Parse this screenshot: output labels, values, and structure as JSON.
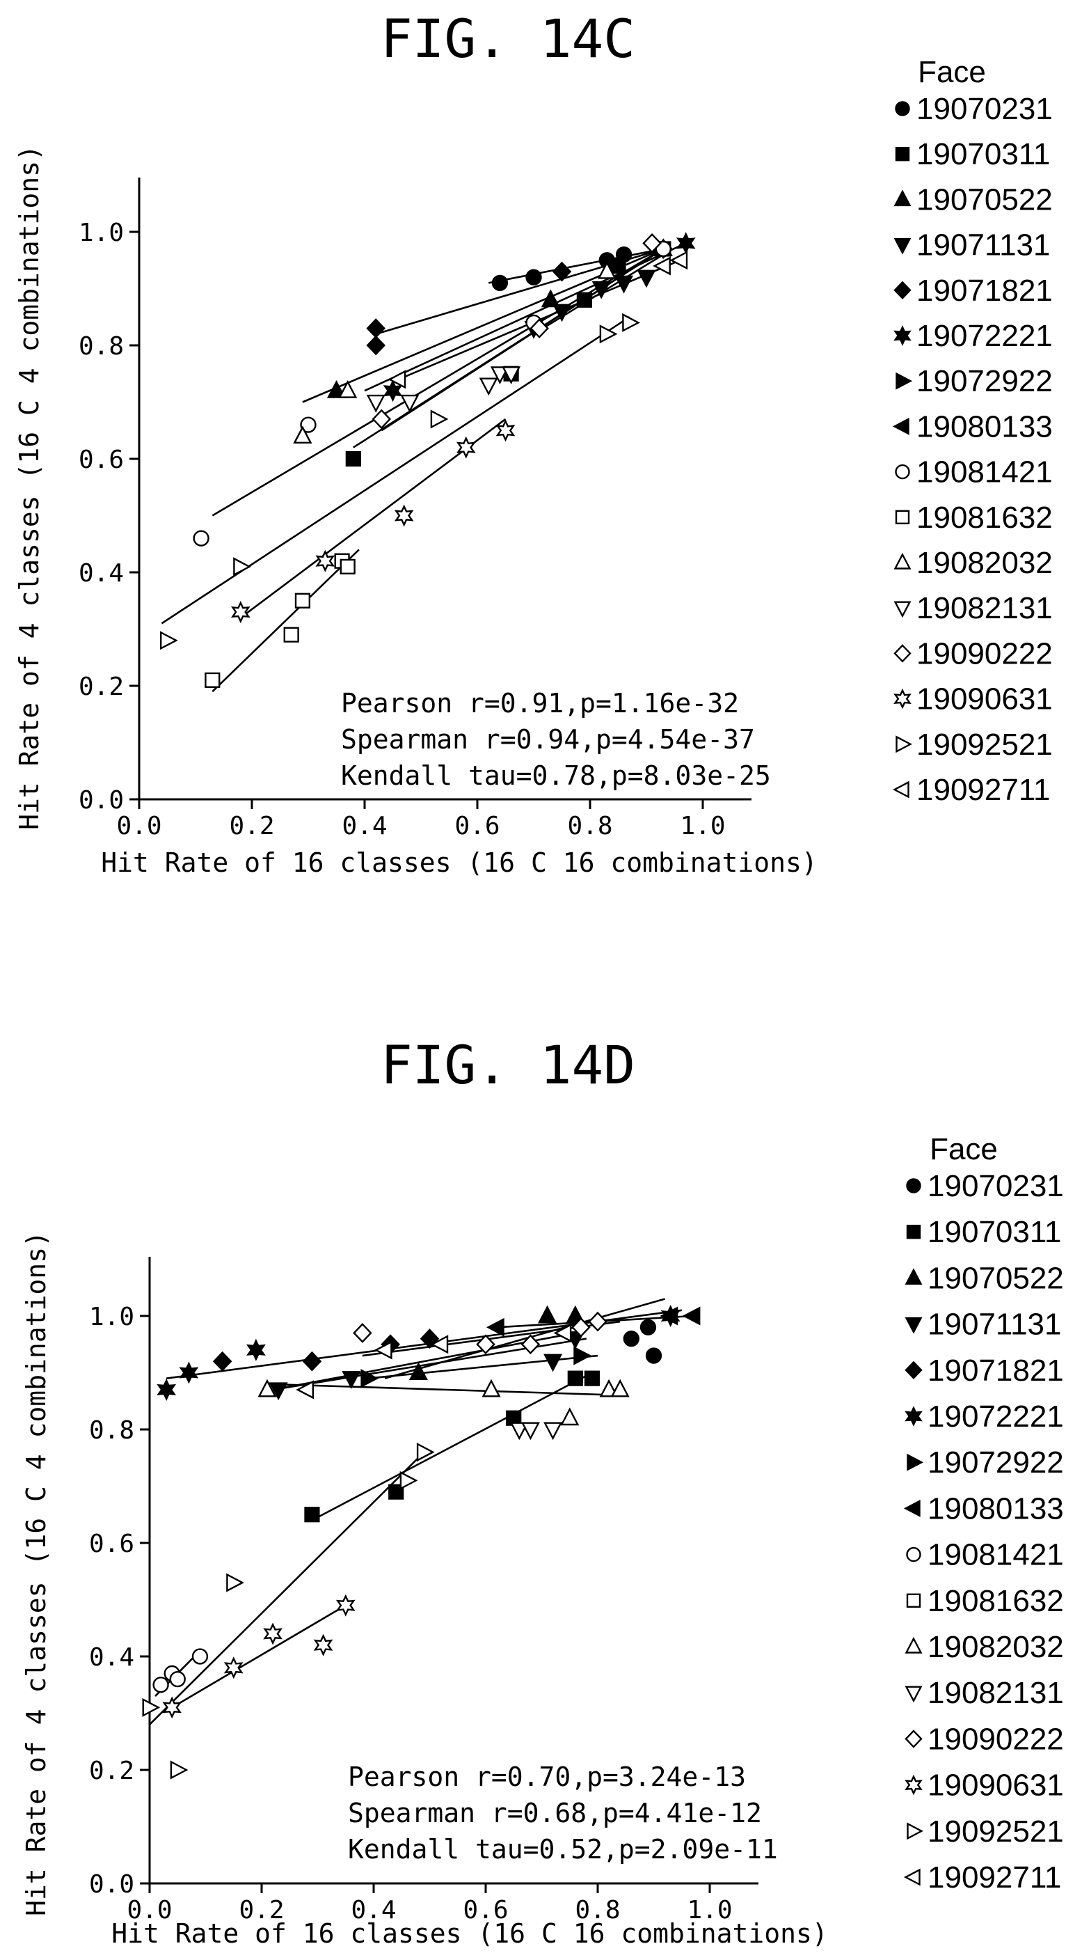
{
  "chart_data": [
    {
      "type": "scatter",
      "title": "FIG. 14C",
      "xlabel": "Hit Rate of 16 classes (16 C 16 combinations)",
      "ylabel": "Hit Rate of 4 classes (16 C 4 combinations)",
      "xlim": [
        0.0,
        1.1
      ],
      "ylim": [
        0.0,
        1.1
      ],
      "xticks": [
        "0.0",
        "0.2",
        "0.4",
        "0.6",
        "0.8",
        "1.0"
      ],
      "yticks": [
        "0.0",
        "0.2",
        "0.4",
        "0.6",
        "0.8",
        "1.0"
      ],
      "legend_title": "Face",
      "legend_position": "right",
      "stats": [
        "Pearson r=0.91,p=1.16e-32",
        "Spearman r=0.94,p=4.54e-37",
        "Kendall tau=0.78,p=8.03e-25"
      ],
      "series": [
        {
          "name": "19070231",
          "marker": "circle",
          "points": [
            [
              0.64,
              0.91
            ],
            [
              0.7,
              0.92
            ],
            [
              0.83,
              0.95
            ],
            [
              0.86,
              0.96
            ],
            [
              0.93,
              0.97
            ]
          ],
          "fit": [
            [
              0.62,
              0.91
            ],
            [
              0.93,
              0.97
            ]
          ]
        },
        {
          "name": "19070311",
          "marker": "square",
          "points": [
            [
              0.38,
              0.6
            ],
            [
              0.66,
              0.75
            ],
            [
              0.79,
              0.88
            ],
            [
              0.85,
              0.94
            ],
            [
              0.93,
              0.97
            ]
          ],
          "fit": [
            [
              0.38,
              0.62
            ],
            [
              0.93,
              0.97
            ]
          ]
        },
        {
          "name": "19070522",
          "marker": "triangle-up",
          "points": [
            [
              0.29,
              0.64
            ],
            [
              0.35,
              0.72
            ],
            [
              0.73,
              0.88
            ],
            [
              0.93,
              0.97
            ]
          ],
          "fit": [
            [
              0.29,
              0.7
            ],
            [
              0.93,
              0.97
            ]
          ]
        },
        {
          "name": "19071131",
          "marker": "triangle-down",
          "points": [
            [
              0.7,
              0.83
            ],
            [
              0.75,
              0.86
            ],
            [
              0.82,
              0.9
            ],
            [
              0.86,
              0.91
            ],
            [
              0.9,
              0.92
            ]
          ],
          "fit": [
            [
              0.7,
              0.82
            ],
            [
              0.93,
              0.96
            ]
          ]
        },
        {
          "name": "19071821",
          "marker": "diamond",
          "points": [
            [
              0.42,
              0.83
            ],
            [
              0.42,
              0.8
            ],
            [
              0.75,
              0.93
            ],
            [
              0.93,
              0.97
            ]
          ],
          "fit": [
            [
              0.42,
              0.82
            ],
            [
              0.93,
              0.97
            ]
          ]
        },
        {
          "name": "19072221",
          "marker": "star6",
          "points": [
            [
              0.45,
              0.72
            ],
            [
              0.97,
              0.98
            ]
          ],
          "fit": [
            [
              0.4,
              0.72
            ],
            [
              0.97,
              0.98
            ]
          ]
        },
        {
          "name": "19072922",
          "marker": "triangle-right",
          "points": [],
          "fit": []
        },
        {
          "name": "19080133",
          "marker": "triangle-left",
          "points": [],
          "fit": []
        },
        {
          "name": "19081421",
          "marker": "circle-open",
          "points": [
            [
              0.11,
              0.46
            ],
            [
              0.3,
              0.66
            ],
            [
              0.7,
              0.84
            ],
            [
              0.93,
              0.97
            ]
          ],
          "fit": [
            [
              0.13,
              0.5
            ],
            [
              0.93,
              0.97
            ]
          ]
        },
        {
          "name": "19081632",
          "marker": "square-open",
          "points": [
            [
              0.13,
              0.21
            ],
            [
              0.27,
              0.29
            ],
            [
              0.29,
              0.35
            ],
            [
              0.36,
              0.42
            ],
            [
              0.37,
              0.41
            ]
          ],
          "fit": [
            [
              0.13,
              0.19
            ],
            [
              0.39,
              0.44
            ]
          ]
        },
        {
          "name": "19082032",
          "marker": "triangle-up-open",
          "points": [
            [
              0.29,
              0.64
            ],
            [
              0.37,
              0.72
            ],
            [
              0.83,
              0.93
            ]
          ],
          "fit": []
        },
        {
          "name": "19082131",
          "marker": "triangle-down-open",
          "points": [
            [
              0.42,
              0.7
            ],
            [
              0.48,
              0.7
            ],
            [
              0.62,
              0.73
            ],
            [
              0.64,
              0.75
            ],
            [
              0.66,
              0.75
            ]
          ],
          "fit": []
        },
        {
          "name": "19090222",
          "marker": "diamond-open",
          "points": [
            [
              0.43,
              0.67
            ],
            [
              0.71,
              0.83
            ],
            [
              0.91,
              0.98
            ]
          ],
          "fit": [
            [
              0.43,
              0.65
            ],
            [
              0.93,
              0.97
            ]
          ]
        },
        {
          "name": "19090631",
          "marker": "star6-open",
          "points": [
            [
              0.18,
              0.33
            ],
            [
              0.33,
              0.42
            ],
            [
              0.47,
              0.5
            ],
            [
              0.58,
              0.62
            ],
            [
              0.65,
              0.65
            ]
          ],
          "fit": [
            [
              0.18,
              0.32
            ],
            [
              0.65,
              0.67
            ]
          ]
        },
        {
          "name": "19092521",
          "marker": "triangle-right-open",
          "points": [
            [
              0.05,
              0.28
            ],
            [
              0.18,
              0.41
            ],
            [
              0.53,
              0.67
            ],
            [
              0.83,
              0.82
            ],
            [
              0.87,
              0.84
            ]
          ],
          "fit": [
            [
              0.04,
              0.31
            ],
            [
              0.87,
              0.85
            ]
          ]
        },
        {
          "name": "19092711",
          "marker": "triangle-left-open",
          "points": [
            [
              0.46,
              0.74
            ],
            [
              0.93,
              0.94
            ],
            [
              0.96,
              0.95
            ]
          ],
          "fit": [
            [
              0.46,
              0.74
            ],
            [
              0.96,
              0.95
            ]
          ]
        }
      ]
    },
    {
      "type": "scatter",
      "title": "FIG. 14D",
      "xlabel": "Hit Rate of 16 classes (16 C 16 combinations)",
      "ylabel": "Hit Rate of 4 classes (16 C 4 combinations)",
      "xlim": [
        0.0,
        1.1
      ],
      "ylim": [
        0.0,
        1.1
      ],
      "xticks": [
        "0.0",
        "0.2",
        "0.4",
        "0.6",
        "0.8",
        "1.0"
      ],
      "yticks": [
        "0.0",
        "0.2",
        "0.4",
        "0.6",
        "0.8",
        "1.0"
      ],
      "legend_title": "Face",
      "legend_position": "right",
      "stats": [
        "Pearson r=0.70,p=3.24e-13",
        "Spearman r=0.68,p=4.41e-12",
        "Kendall tau=0.52,p=2.09e-11"
      ],
      "series": [
        {
          "name": "19070231",
          "marker": "circle",
          "points": [
            [
              0.86,
              0.96
            ],
            [
              0.89,
              0.98
            ],
            [
              0.9,
              0.93
            ]
          ],
          "fit": []
        },
        {
          "name": "19070311",
          "marker": "square",
          "points": [
            [
              0.29,
              0.65
            ],
            [
              0.44,
              0.69
            ],
            [
              0.65,
              0.82
            ],
            [
              0.76,
              0.89
            ],
            [
              0.79,
              0.89
            ]
          ],
          "fit": [
            [
              0.29,
              0.64
            ],
            [
              0.79,
              0.9
            ]
          ]
        },
        {
          "name": "19070522",
          "marker": "triangle-up",
          "points": [
            [
              0.48,
              0.9
            ],
            [
              0.71,
              1.0
            ],
            [
              0.76,
              1.0
            ]
          ],
          "fit": [
            [
              0.42,
              0.89
            ],
            [
              0.92,
              1.03
            ]
          ]
        },
        {
          "name": "19071131",
          "marker": "triangle-down",
          "points": [
            [
              0.23,
              0.87
            ],
            [
              0.36,
              0.89
            ],
            [
              0.72,
              0.92
            ],
            [
              0.76,
              0.96
            ]
          ],
          "fit": [
            [
              0.22,
              0.87
            ],
            [
              0.78,
              0.96
            ]
          ]
        },
        {
          "name": "19071821",
          "marker": "diamond",
          "points": [
            [
              0.13,
              0.92
            ],
            [
              0.29,
              0.92
            ],
            [
              0.43,
              0.95
            ],
            [
              0.5,
              0.96
            ]
          ],
          "fit": []
        },
        {
          "name": "19072221",
          "marker": "star6",
          "points": [
            [
              0.03,
              0.87
            ],
            [
              0.07,
              0.9
            ],
            [
              0.19,
              0.94
            ],
            [
              0.93,
              1.0
            ]
          ],
          "fit": [
            [
              0.03,
              0.89
            ],
            [
              0.95,
              1.01
            ]
          ]
        },
        {
          "name": "19072922",
          "marker": "triangle-right",
          "points": [
            [
              0.39,
              0.89
            ],
            [
              0.77,
              0.93
            ]
          ],
          "fit": [
            [
              0.39,
              0.89
            ],
            [
              0.8,
              0.93
            ]
          ]
        },
        {
          "name": "19080133",
          "marker": "triangle-left",
          "points": [
            [
              0.62,
              0.98
            ],
            [
              0.93,
              1.0
            ],
            [
              0.97,
              1.0
            ]
          ],
          "fit": [
            [
              0.62,
              0.98
            ],
            [
              0.97,
              1.0
            ]
          ]
        },
        {
          "name": "19081421",
          "marker": "circle-open",
          "points": [
            [
              0.02,
              0.35
            ],
            [
              0.04,
              0.37
            ],
            [
              0.05,
              0.36
            ],
            [
              0.09,
              0.4
            ]
          ],
          "fit": [
            [
              0.01,
              0.33
            ],
            [
              0.09,
              0.41
            ]
          ]
        },
        {
          "name": "19081632",
          "marker": "square-open",
          "points": [],
          "fit": []
        },
        {
          "name": "19082032",
          "marker": "triangle-up-open",
          "points": [
            [
              0.21,
              0.87
            ],
            [
              0.61,
              0.87
            ],
            [
              0.75,
              0.82
            ],
            [
              0.82,
              0.87
            ],
            [
              0.84,
              0.87
            ]
          ],
          "fit": [
            [
              0.21,
              0.88
            ],
            [
              0.85,
              0.86
            ]
          ]
        },
        {
          "name": "19082131",
          "marker": "triangle-down-open",
          "points": [
            [
              0.66,
              0.8
            ],
            [
              0.68,
              0.8
            ],
            [
              0.72,
              0.8
            ]
          ],
          "fit": []
        },
        {
          "name": "19090222",
          "marker": "diamond-open",
          "points": [
            [
              0.38,
              0.97
            ],
            [
              0.6,
              0.95
            ],
            [
              0.68,
              0.95
            ],
            [
              0.77,
              0.98
            ],
            [
              0.8,
              0.99
            ]
          ],
          "fit": [
            [
              0.38,
              0.93
            ],
            [
              0.84,
              0.99
            ]
          ]
        },
        {
          "name": "19090631",
          "marker": "star6-open",
          "points": [
            [
              0.04,
              0.31
            ],
            [
              0.15,
              0.38
            ],
            [
              0.22,
              0.44
            ],
            [
              0.31,
              0.42
            ],
            [
              0.35,
              0.49
            ]
          ],
          "fit": [
            [
              0.04,
              0.31
            ],
            [
              0.35,
              0.49
            ]
          ]
        },
        {
          "name": "19092521",
          "marker": "triangle-right-open",
          "points": [
            [
              0.0,
              0.31
            ],
            [
              0.05,
              0.2
            ],
            [
              0.15,
              0.53
            ],
            [
              0.46,
              0.71
            ],
            [
              0.49,
              0.76
            ]
          ],
          "fit": [
            [
              0.0,
              0.28
            ],
            [
              0.49,
              0.76
            ]
          ]
        },
        {
          "name": "19092711",
          "marker": "triangle-left-open",
          "points": [
            [
              0.28,
              0.87
            ],
            [
              0.42,
              0.94
            ],
            [
              0.52,
              0.95
            ],
            [
              0.74,
              0.97
            ]
          ],
          "fit": [
            [
              0.22,
              0.87
            ],
            [
              0.76,
              0.97
            ]
          ]
        }
      ]
    }
  ]
}
